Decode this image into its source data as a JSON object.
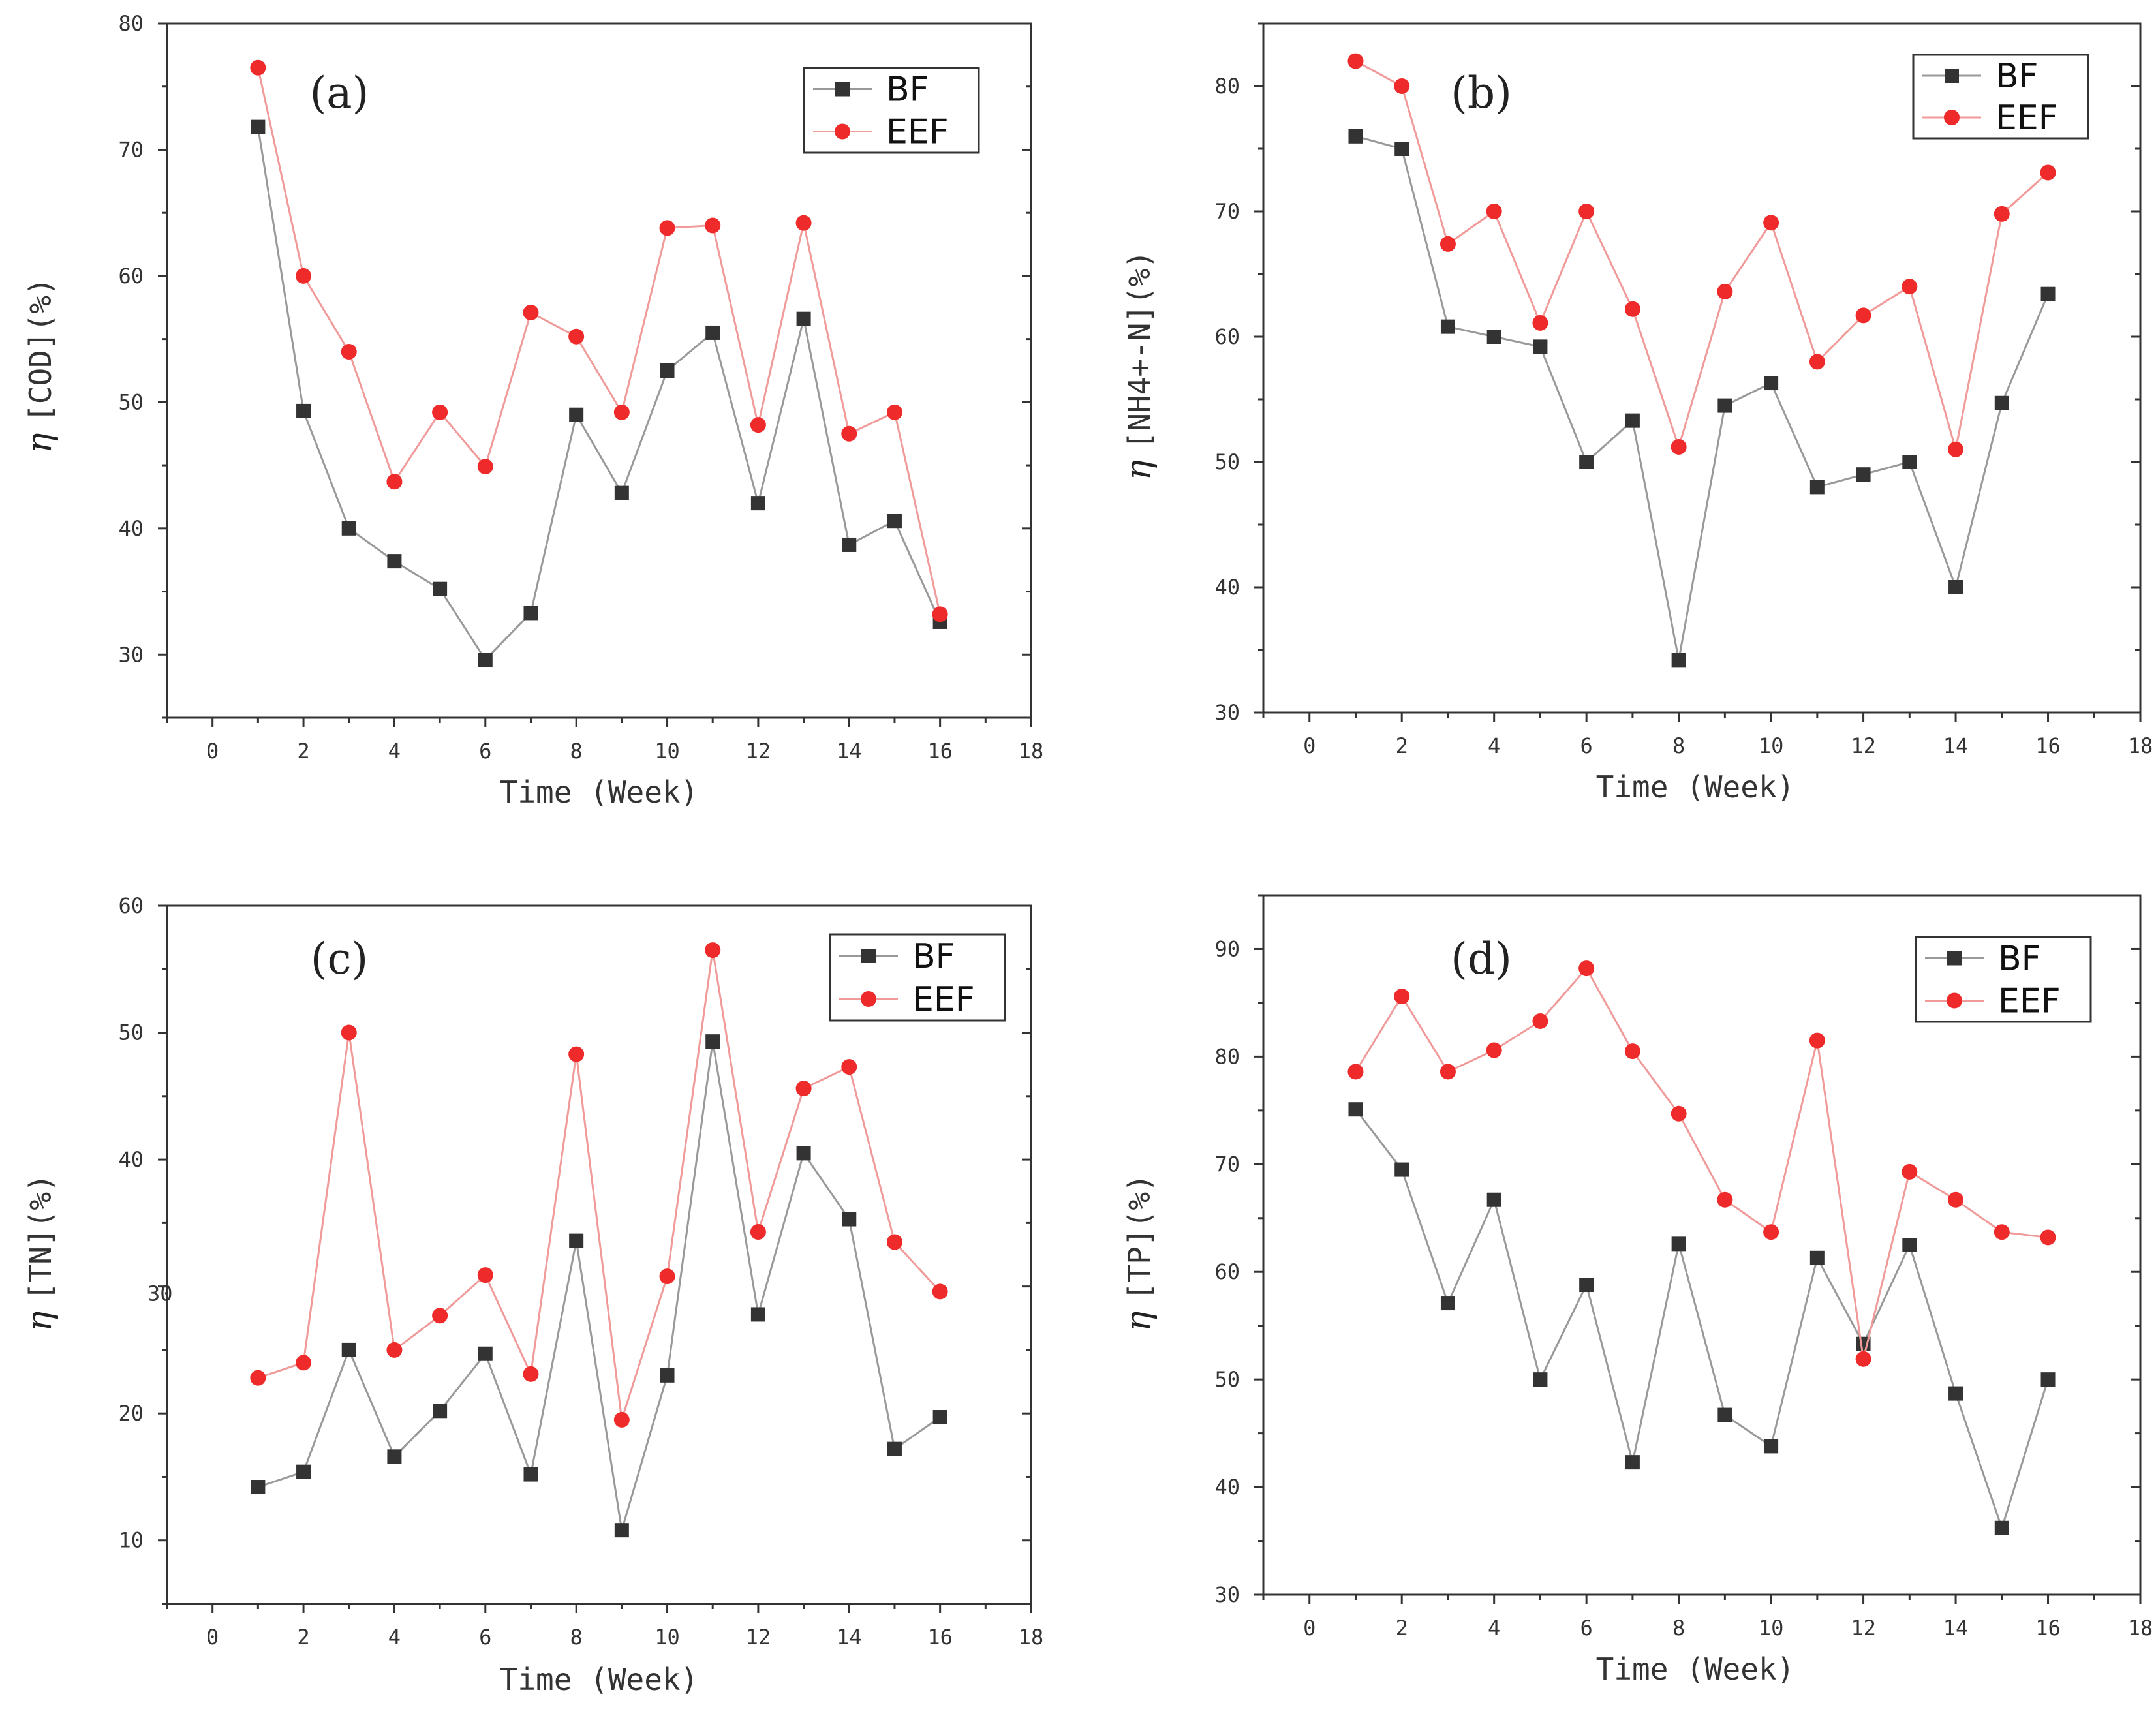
{
  "colors": {
    "bf": "#333333",
    "bf_line": "#999999",
    "eef": "#ee2a2a",
    "eef_line": "#f09a9a",
    "axis": "#333333"
  },
  "chart_data": [
    {
      "type": "line",
      "panel_label": "(a)",
      "xlabel": "Time (Week)",
      "ylabel_symbol": "η",
      "ylabel": "[COD](%)",
      "xlim": [
        -1,
        18
      ],
      "ylim": [
        25,
        80
      ],
      "xticks": [
        "0",
        "2",
        "4",
        "6",
        "8",
        "10",
        "12",
        "14",
        "16",
        "18"
      ],
      "yticks": [
        "30",
        "40",
        "50",
        "60",
        "70",
        "80"
      ],
      "legend_position": "top-right",
      "x": [
        1,
        2,
        3,
        4,
        5,
        6,
        7,
        8,
        9,
        10,
        11,
        12,
        13,
        14,
        15,
        16
      ],
      "series": [
        {
          "name": "BF",
          "marker": "square",
          "values": [
            71.8,
            49.3,
            40.0,
            37.4,
            35.2,
            29.6,
            33.3,
            49.0,
            42.8,
            52.5,
            55.5,
            42.0,
            56.6,
            38.7,
            40.6,
            32.6
          ]
        },
        {
          "name": "EEF",
          "marker": "circle",
          "values": [
            76.5,
            60.0,
            54.0,
            43.7,
            49.2,
            44.9,
            57.1,
            55.2,
            49.2,
            63.8,
            64.0,
            48.2,
            64.2,
            47.5,
            49.2,
            33.2
          ]
        }
      ]
    },
    {
      "type": "line",
      "panel_label": "(b)",
      "xlabel": "Time (Week)",
      "ylabel_symbol": "η",
      "ylabel": "[NH4+-N](%)",
      "xlim": [
        -1,
        18
      ],
      "ylim": [
        30,
        85
      ],
      "xticks": [
        "0",
        "2",
        "4",
        "6",
        "8",
        "10",
        "12",
        "14",
        "16",
        "18"
      ],
      "yticks": [
        "30",
        "40",
        "50",
        "60",
        "70",
        "80"
      ],
      "legend_position": "top-right",
      "x": [
        1,
        2,
        3,
        4,
        5,
        6,
        7,
        8,
        9,
        10,
        11,
        12,
        13,
        14,
        15,
        16
      ],
      "series": [
        {
          "name": "BF",
          "marker": "square",
          "values": [
            76.0,
            75.0,
            60.8,
            60.0,
            59.2,
            50.0,
            53.3,
            34.2,
            54.5,
            56.3,
            48.0,
            49.0,
            50.0,
            40.0,
            54.7,
            63.4
          ]
        },
        {
          "name": "EEF",
          "marker": "circle",
          "values": [
            82.0,
            80.0,
            67.4,
            70.0,
            61.1,
            70.0,
            62.2,
            51.2,
            63.6,
            69.1,
            58.0,
            61.7,
            64.0,
            51.0,
            69.8,
            73.1
          ]
        }
      ]
    },
    {
      "type": "line",
      "panel_label": "(c)",
      "xlabel": "Time (Week)",
      "ylabel_symbol": "η",
      "ylabel": "[TN](%)",
      "xlim": [
        -1,
        18
      ],
      "ylim": [
        5,
        60
      ],
      "xticks": [
        "0",
        "2",
        "4",
        "6",
        "8",
        "10",
        "12",
        "14",
        "16",
        "18"
      ],
      "yticks": [
        "10",
        "20",
        "40",
        "50",
        "60"
      ],
      "stray_tick": "30",
      "legend_position": "top-right",
      "x": [
        1,
        2,
        3,
        4,
        5,
        6,
        7,
        8,
        9,
        10,
        11,
        12,
        13,
        14,
        15,
        16
      ],
      "series": [
        {
          "name": "BF",
          "marker": "square",
          "values": [
            14.2,
            15.4,
            25.0,
            16.6,
            20.2,
            24.7,
            15.2,
            33.6,
            10.8,
            23.0,
            49.3,
            27.8,
            40.5,
            35.3,
            17.2,
            19.7
          ]
        },
        {
          "name": "EEF",
          "marker": "circle",
          "values": [
            22.8,
            24.0,
            50.0,
            25.0,
            27.7,
            30.9,
            23.1,
            48.3,
            19.5,
            30.8,
            56.5,
            34.3,
            45.6,
            47.3,
            33.5,
            29.6
          ]
        }
      ]
    },
    {
      "type": "line",
      "panel_label": "(d)",
      "xlabel": "Time (Week)",
      "ylabel_symbol": "η",
      "ylabel": "[TP](%)",
      "xlim": [
        -1,
        18
      ],
      "ylim": [
        30,
        95
      ],
      "xticks": [
        "0",
        "2",
        "4",
        "6",
        "8",
        "10",
        "12",
        "14",
        "16",
        "18"
      ],
      "yticks": [
        "30",
        "40",
        "50",
        "60",
        "70",
        "80",
        "90"
      ],
      "legend_position": "top-right",
      "x": [
        1,
        2,
        3,
        4,
        5,
        6,
        7,
        8,
        9,
        10,
        11,
        12,
        13,
        14,
        15,
        16
      ],
      "series": [
        {
          "name": "BF",
          "marker": "square",
          "values": [
            75.1,
            69.5,
            57.1,
            66.7,
            50.0,
            58.8,
            42.3,
            62.6,
            46.7,
            43.8,
            61.3,
            53.3,
            62.5,
            48.7,
            36.2,
            50.0
          ]
        },
        {
          "name": "EEF",
          "marker": "circle",
          "values": [
            78.6,
            85.6,
            78.6,
            80.6,
            83.3,
            88.2,
            80.5,
            74.7,
            66.7,
            63.7,
            81.5,
            51.9,
            69.3,
            66.7,
            63.7,
            63.2
          ]
        }
      ]
    }
  ]
}
